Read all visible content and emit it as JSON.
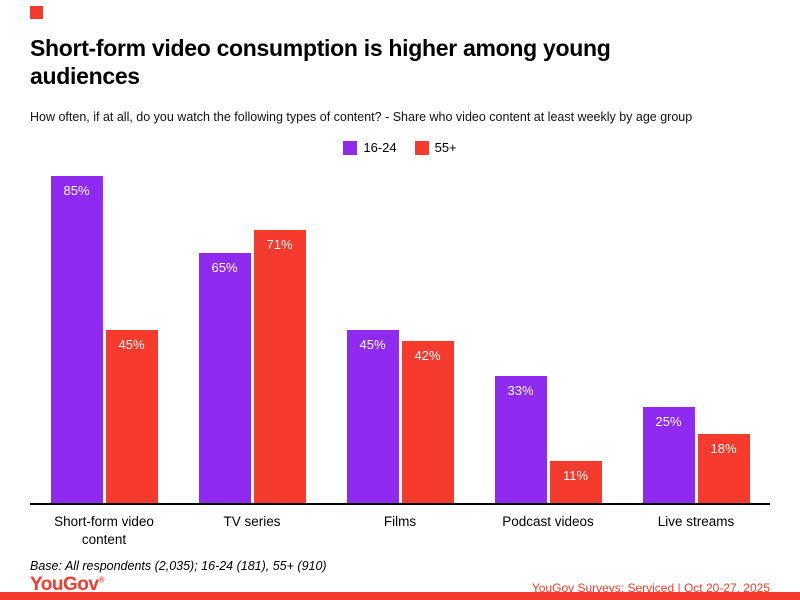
{
  "page": {
    "title": "Short-form video consumption is higher among young audiences",
    "subtitle": "How often, if at all, do you watch the following types of content? - Share who video content at least weekly by age group",
    "base_note": "Base: All respondents (2,035); 16-24 (181), 55+ (910)",
    "logo_text": "YouGov",
    "logo_mark": "®",
    "source_text": "YouGov Surveys: Serviced | Oct 20-27, 2025"
  },
  "colors": {
    "purple": "#8f2bf0",
    "red": "#f43b2d",
    "brand_red": "#f43b2d",
    "axis": "#000000",
    "background": "#ffffff"
  },
  "chart_data": {
    "type": "bar",
    "title": "Short-form video consumption is higher among young audiences",
    "categories": [
      "Short-form video content",
      "TV series",
      "Films",
      "Podcast videos",
      "Live streams"
    ],
    "series": [
      {
        "name": "16-24",
        "color": "#8f2bf0",
        "values": [
          85,
          65,
          45,
          33,
          25
        ]
      },
      {
        "name": "55+",
        "color": "#f43b2d",
        "values": [
          45,
          71,
          42,
          11,
          18
        ]
      }
    ],
    "value_suffix": "%",
    "xlabel": "",
    "ylabel": "",
    "ylim": [
      0,
      90
    ],
    "grid": false,
    "legend_position": "top-center",
    "data_labels": "inside-top"
  }
}
